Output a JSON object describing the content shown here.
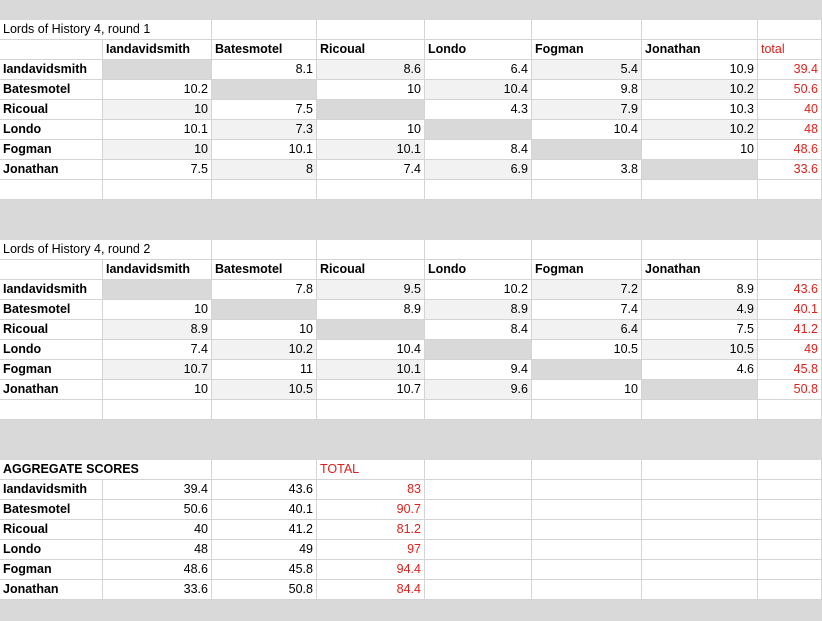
{
  "rounds": [
    {
      "title": "Lords of History 4, round 1",
      "headers": [
        "Iandavidsmith",
        "Batesmotel",
        "Ricoual",
        "Londo",
        "Fogman",
        "Jonathan",
        "total"
      ],
      "rows": [
        {
          "name": "Iandavidsmith",
          "scores": [
            null,
            8.1,
            8.6,
            6.4,
            5.4,
            10.9
          ],
          "total": 39.4
        },
        {
          "name": "Batesmotel",
          "scores": [
            10.2,
            null,
            10,
            10.4,
            9.8,
            10.2
          ],
          "total": 50.6
        },
        {
          "name": "Ricoual",
          "scores": [
            10,
            7.5,
            null,
            4.3,
            7.9,
            10.3
          ],
          "total": 40
        },
        {
          "name": "Londo",
          "scores": [
            10.1,
            7.3,
            10,
            null,
            10.4,
            10.2
          ],
          "total": 48
        },
        {
          "name": "Fogman",
          "scores": [
            10,
            10.1,
            10.1,
            8.4,
            null,
            10
          ],
          "total": 48.6
        },
        {
          "name": "Jonathan",
          "scores": [
            7.5,
            8,
            7.4,
            6.9,
            3.8,
            null
          ],
          "total": 33.6
        }
      ]
    },
    {
      "title": "Lords of History 4, round 2",
      "headers": [
        "Iandavidsmith",
        "Batesmotel",
        "Ricoual",
        "Londo",
        "Fogman",
        "Jonathan"
      ],
      "rows": [
        {
          "name": "Iandavidsmith",
          "scores": [
            null,
            7.8,
            9.5,
            10.2,
            7.2,
            8.9
          ],
          "total": 43.6
        },
        {
          "name": "Batesmotel",
          "scores": [
            10,
            null,
            8.9,
            8.9,
            7.4,
            4.9
          ],
          "total": 40.1
        },
        {
          "name": "Ricoual",
          "scores": [
            8.9,
            10,
            null,
            8.4,
            6.4,
            7.5
          ],
          "total": 41.2
        },
        {
          "name": "Londo",
          "scores": [
            7.4,
            10.2,
            10.4,
            null,
            10.5,
            10.5
          ],
          "total": 49
        },
        {
          "name": "Fogman",
          "scores": [
            10.7,
            11,
            10.1,
            9.4,
            null,
            4.6
          ],
          "total": 45.8
        },
        {
          "name": "Jonathan",
          "scores": [
            10,
            10.5,
            10.7,
            9.6,
            10,
            null
          ],
          "total": 50.8
        }
      ]
    }
  ],
  "aggregate": {
    "title": "AGGREGATE SCORES",
    "total_label": "TOTAL",
    "rows": [
      {
        "name": "Iandavidsmith",
        "round1": 39.4,
        "round2": 43.6,
        "total": 83
      },
      {
        "name": "Batesmotel",
        "round1": 50.6,
        "round2": 40.1,
        "total": 90.7
      },
      {
        "name": "Ricoual",
        "round1": 40,
        "round2": 41.2,
        "total": 81.2
      },
      {
        "name": "Londo",
        "round1": 48,
        "round2": 49,
        "total": 97
      },
      {
        "name": "Fogman",
        "round1": 48.6,
        "round2": 45.8,
        "total": 94.4
      },
      {
        "name": "Jonathan",
        "round1": 33.6,
        "round2": 50.8,
        "total": 84.4
      }
    ]
  }
}
